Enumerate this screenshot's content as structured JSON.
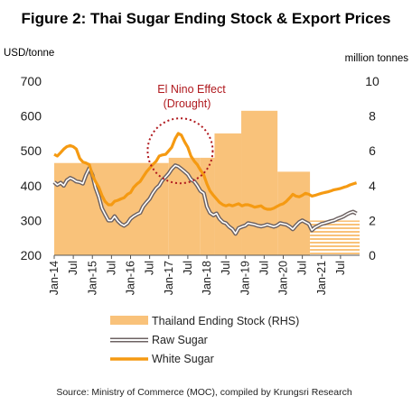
{
  "chart_data": {
    "type": "bar+line",
    "title": "Figure 2: Thai Sugar Ending Stock & Export Prices",
    "y_left_label": "USD/tonne",
    "y_right_label": "million tonnes",
    "y_left_ticks": [
      "700",
      "600",
      "500",
      "400",
      "300",
      "200"
    ],
    "y_right_ticks": [
      "10",
      "8",
      "6",
      "4",
      "2",
      "0"
    ],
    "y_left_range": [
      200,
      700
    ],
    "y_right_range": [
      0,
      10
    ],
    "x_range": [
      2014.0,
      2022.0
    ],
    "x_ticks": [
      {
        "label": "Jan-14",
        "x": 2014.0
      },
      {
        "label": "Jul",
        "x": 2014.5
      },
      {
        "label": "Jan-15",
        "x": 2015.0
      },
      {
        "label": "Jul",
        "x": 2015.5
      },
      {
        "label": "Jan-16",
        "x": 2016.0
      },
      {
        "label": "Jul",
        "x": 2016.5
      },
      {
        "label": "Jan-17",
        "x": 2017.0
      },
      {
        "label": "Jul",
        "x": 2017.5
      },
      {
        "label": "Jan-18",
        "x": 2018.0
      },
      {
        "label": "Jul",
        "x": 2018.5
      },
      {
        "label": "Jan-19",
        "x": 2019.0
      },
      {
        "label": "Jul",
        "x": 2019.5
      },
      {
        "label": "Jan-20",
        "x": 2020.0
      },
      {
        "label": "Jul",
        "x": 2020.5
      },
      {
        "label": "Jan-21",
        "x": 2021.0
      },
      {
        "label": "Jul",
        "x": 2021.5
      }
    ],
    "stock_bars": [
      {
        "x_start": 2014.0,
        "x_end": 2017.0,
        "value": 5.3
      },
      {
        "x_start": 2017.0,
        "x_end": 2017.83,
        "value": 5.6
      },
      {
        "x_start": 2017.83,
        "x_end": 2018.2,
        "value": 5.6
      },
      {
        "x_start": 2018.2,
        "x_end": 2018.9,
        "value": 7.0
      },
      {
        "x_start": 2018.9,
        "x_end": 2019.85,
        "value": 8.3
      },
      {
        "x_start": 2019.85,
        "x_end": 2020.7,
        "value": 4.8
      },
      {
        "x_start": 2020.7,
        "x_end": 2022.0,
        "value": 2.0,
        "forecast": true
      }
    ],
    "series": [
      {
        "name": "Raw Sugar",
        "color": "#6d6262",
        "points": [
          [
            2014.0,
            410
          ],
          [
            2014.08,
            402
          ],
          [
            2014.17,
            408
          ],
          [
            2014.25,
            400
          ],
          [
            2014.33,
            415
          ],
          [
            2014.42,
            422
          ],
          [
            2014.5,
            418
          ],
          [
            2014.58,
            412
          ],
          [
            2014.67,
            410
          ],
          [
            2014.75,
            406
          ],
          [
            2014.83,
            430
          ],
          [
            2014.92,
            450
          ],
          [
            2015.0,
            430
          ],
          [
            2015.08,
            395
          ],
          [
            2015.17,
            368
          ],
          [
            2015.25,
            335
          ],
          [
            2015.33,
            318
          ],
          [
            2015.42,
            300
          ],
          [
            2015.5,
            300
          ],
          [
            2015.58,
            312
          ],
          [
            2015.67,
            298
          ],
          [
            2015.75,
            290
          ],
          [
            2015.83,
            285
          ],
          [
            2015.92,
            292
          ],
          [
            2016.0,
            305
          ],
          [
            2016.08,
            312
          ],
          [
            2016.17,
            318
          ],
          [
            2016.25,
            322
          ],
          [
            2016.33,
            340
          ],
          [
            2016.42,
            352
          ],
          [
            2016.5,
            362
          ],
          [
            2016.58,
            378
          ],
          [
            2016.67,
            392
          ],
          [
            2016.75,
            400
          ],
          [
            2016.83,
            415
          ],
          [
            2016.92,
            425
          ],
          [
            2017.0,
            435
          ],
          [
            2017.08,
            448
          ],
          [
            2017.17,
            458
          ],
          [
            2017.25,
            455
          ],
          [
            2017.33,
            448
          ],
          [
            2017.42,
            440
          ],
          [
            2017.5,
            432
          ],
          [
            2017.58,
            418
          ],
          [
            2017.67,
            412
          ],
          [
            2017.75,
            400
          ],
          [
            2017.83,
            385
          ],
          [
            2017.92,
            378
          ],
          [
            2018.0,
            340
          ],
          [
            2018.08,
            322
          ],
          [
            2018.17,
            315
          ],
          [
            2018.25,
            320
          ],
          [
            2018.33,
            305
          ],
          [
            2018.42,
            295
          ],
          [
            2018.5,
            292
          ],
          [
            2018.58,
            282
          ],
          [
            2018.67,
            275
          ],
          [
            2018.75,
            262
          ],
          [
            2018.83,
            278
          ],
          [
            2018.92,
            282
          ],
          [
            2019.0,
            285
          ],
          [
            2019.08,
            292
          ],
          [
            2019.17,
            290
          ],
          [
            2019.25,
            288
          ],
          [
            2019.33,
            285
          ],
          [
            2019.42,
            283
          ],
          [
            2019.5,
            285
          ],
          [
            2019.58,
            288
          ],
          [
            2019.67,
            285
          ],
          [
            2019.75,
            282
          ],
          [
            2019.83,
            285
          ],
          [
            2019.92,
            292
          ],
          [
            2020.0,
            290
          ],
          [
            2020.08,
            288
          ],
          [
            2020.17,
            282
          ],
          [
            2020.25,
            275
          ],
          [
            2020.33,
            285
          ],
          [
            2020.42,
            295
          ],
          [
            2020.5,
            300
          ],
          [
            2020.58,
            295
          ],
          [
            2020.67,
            290
          ],
          [
            2020.75,
            272
          ],
          [
            2020.83,
            280
          ],
          [
            2020.92,
            285
          ],
          [
            2021.0,
            290
          ],
          [
            2021.08,
            292
          ],
          [
            2021.17,
            295
          ],
          [
            2021.25,
            298
          ],
          [
            2021.33,
            300
          ],
          [
            2021.42,
            305
          ],
          [
            2021.5,
            308
          ],
          [
            2021.58,
            312
          ],
          [
            2021.67,
            318
          ],
          [
            2021.75,
            322
          ],
          [
            2021.83,
            325
          ],
          [
            2021.92,
            320
          ]
        ]
      },
      {
        "name": "White Sugar",
        "color": "#f59a12",
        "points": [
          [
            2014.0,
            490
          ],
          [
            2014.08,
            485
          ],
          [
            2014.17,
            495
          ],
          [
            2014.25,
            505
          ],
          [
            2014.33,
            512
          ],
          [
            2014.42,
            515
          ],
          [
            2014.5,
            512
          ],
          [
            2014.58,
            505
          ],
          [
            2014.67,
            478
          ],
          [
            2014.75,
            468
          ],
          [
            2014.83,
            465
          ],
          [
            2014.92,
            460
          ],
          [
            2015.0,
            430
          ],
          [
            2015.08,
            412
          ],
          [
            2015.17,
            395
          ],
          [
            2015.25,
            372
          ],
          [
            2015.33,
            355
          ],
          [
            2015.42,
            345
          ],
          [
            2015.5,
            345
          ],
          [
            2015.58,
            355
          ],
          [
            2015.67,
            358
          ],
          [
            2015.75,
            362
          ],
          [
            2015.83,
            365
          ],
          [
            2015.92,
            375
          ],
          [
            2016.0,
            380
          ],
          [
            2016.08,
            395
          ],
          [
            2016.17,
            405
          ],
          [
            2016.25,
            412
          ],
          [
            2016.33,
            425
          ],
          [
            2016.42,
            440
          ],
          [
            2016.5,
            450
          ],
          [
            2016.58,
            460
          ],
          [
            2016.67,
            470
          ],
          [
            2016.75,
            485
          ],
          [
            2016.83,
            488
          ],
          [
            2016.92,
            490
          ],
          [
            2017.0,
            500
          ],
          [
            2017.08,
            510
          ],
          [
            2017.17,
            535
          ],
          [
            2017.25,
            550
          ],
          [
            2017.33,
            545
          ],
          [
            2017.42,
            525
          ],
          [
            2017.5,
            510
          ],
          [
            2017.58,
            485
          ],
          [
            2017.67,
            470
          ],
          [
            2017.75,
            460
          ],
          [
            2017.83,
            445
          ],
          [
            2017.92,
            430
          ],
          [
            2018.0,
            405
          ],
          [
            2018.08,
            385
          ],
          [
            2018.17,
            372
          ],
          [
            2018.25,
            362
          ],
          [
            2018.33,
            352
          ],
          [
            2018.42,
            345
          ],
          [
            2018.5,
            342
          ],
          [
            2018.58,
            345
          ],
          [
            2018.67,
            342
          ],
          [
            2018.75,
            345
          ],
          [
            2018.83,
            348
          ],
          [
            2018.92,
            342
          ],
          [
            2019.0,
            345
          ],
          [
            2019.08,
            345
          ],
          [
            2019.17,
            342
          ],
          [
            2019.25,
            338
          ],
          [
            2019.33,
            340
          ],
          [
            2019.42,
            342
          ],
          [
            2019.5,
            335
          ],
          [
            2019.58,
            332
          ],
          [
            2019.67,
            332
          ],
          [
            2019.75,
            335
          ],
          [
            2019.83,
            340
          ],
          [
            2019.92,
            345
          ],
          [
            2020.0,
            348
          ],
          [
            2020.08,
            355
          ],
          [
            2020.17,
            365
          ],
          [
            2020.25,
            375
          ],
          [
            2020.33,
            370
          ],
          [
            2020.42,
            368
          ],
          [
            2020.5,
            372
          ],
          [
            2020.58,
            378
          ],
          [
            2020.67,
            375
          ],
          [
            2020.75,
            370
          ],
          [
            2020.83,
            372
          ],
          [
            2020.92,
            375
          ],
          [
            2021.0,
            378
          ],
          [
            2021.08,
            380
          ],
          [
            2021.17,
            382
          ],
          [
            2021.25,
            385
          ],
          [
            2021.33,
            388
          ],
          [
            2021.42,
            390
          ],
          [
            2021.5,
            392
          ],
          [
            2021.58,
            395
          ],
          [
            2021.67,
            398
          ],
          [
            2021.75,
            402
          ],
          [
            2021.83,
            405
          ],
          [
            2021.92,
            408
          ]
        ]
      }
    ],
    "annotation": {
      "line1": "El Nino Effect",
      "line2": "(Drought)",
      "center_x": 2017.3,
      "center_y": 500
    },
    "legend": [
      {
        "label": "Thailand Ending Stock (RHS)",
        "kind": "bar",
        "color": "#f9c27a"
      },
      {
        "label": "Raw Sugar",
        "kind": "line-outline",
        "color": "#6d6262"
      },
      {
        "label": "White Sugar",
        "kind": "line",
        "color": "#f59a12"
      }
    ],
    "source": "Source: Ministry of Commerce (MOC), compiled by Krungsri Research",
    "colors": {
      "bar": "#f9c27a",
      "raw": "#6d6262",
      "white": "#f59a12",
      "annotation": "#b0191e"
    }
  }
}
